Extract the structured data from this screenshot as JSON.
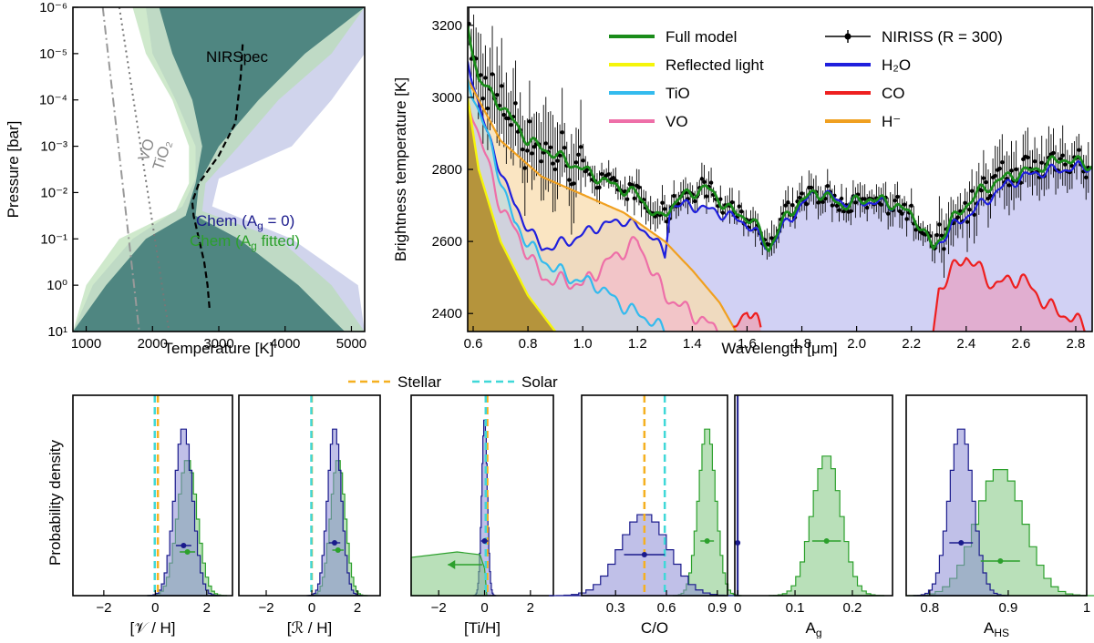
{
  "chart_data": [
    {
      "type": "area",
      "id": "pt_profile",
      "xlabel": "Temperature [K]",
      "ylabel": "Pressure [bar]",
      "xlim": [
        800,
        5200
      ],
      "ylim_log10": [
        -6,
        1
      ],
      "xticks": [
        "1000",
        "2000",
        "3000",
        "4000",
        "5000"
      ],
      "yticks": [
        "10⁻⁶",
        "10⁻⁵",
        "10⁻⁴",
        "10⁻³",
        "10⁻²",
        "10⁻¹",
        "10⁰",
        "10¹"
      ],
      "annotations": {
        "nirspec": "NIRSpec",
        "tio2": "TiO₂",
        "vo": "VO"
      },
      "legend": [
        {
          "name": "Chem (Aᵍ = 0)",
          "label_main": "Chem (A",
          "label_sub": "g",
          "label_end": " = 0)",
          "color": "#1a1a8c"
        },
        {
          "name": "Chem (Aᵍ fitted)",
          "label_main": "Chem (A",
          "label_sub": "g",
          "label_end": " fitted)",
          "color": "#2ca02c"
        }
      ],
      "nirspec_profile": {
        "logP": [
          -5.2,
          -4.5,
          -3.5,
          -2.8,
          -2.2,
          -1.8,
          -1.5,
          -1.0,
          -0.5,
          0.0,
          0.5
        ],
        "T": [
          3360,
          3330,
          3250,
          3000,
          2700,
          2600,
          2620,
          2700,
          2780,
          2830,
          2860
        ]
      },
      "tio2_curve": {
        "logP": [
          -6,
          1
        ],
        "T": [
          1500,
          2250
        ]
      },
      "vo_curve": {
        "logP": [
          -6,
          1
        ],
        "T": [
          1250,
          1800
        ]
      }
    },
    {
      "type": "line",
      "id": "spectrum",
      "xlabel": "Wavelength [μm]",
      "ylabel": "Brightness temperature [K]",
      "xlim": [
        0.58,
        2.86
      ],
      "ylim": [
        2350,
        3250
      ],
      "xticks": [
        0.6,
        0.8,
        1.0,
        1.2,
        1.4,
        1.6,
        1.8,
        2.0,
        2.2,
        2.4,
        2.6,
        2.8
      ],
      "yticks": [
        2400,
        2600,
        2800,
        3000,
        3200
      ],
      "legend_placement": "top",
      "series": [
        {
          "name": "Full model",
          "color": "#1a8c1a"
        },
        {
          "name": "Reflected light",
          "color": "#f5f50a"
        },
        {
          "name": "TiO",
          "color": "#33bbee"
        },
        {
          "name": "VO",
          "color": "#ee6fa8"
        },
        {
          "name": "NIRISS (R = 300)",
          "color": "#000000"
        },
        {
          "name": "H₂O",
          "color": "#1f1fdd"
        },
        {
          "name": "CO",
          "color": "#ee1f1f"
        },
        {
          "name": "H⁻",
          "color": "#f0a020"
        }
      ],
      "h2o_model": {
        "x": [
          0.58,
          0.65,
          0.75,
          0.85,
          0.95,
          1.05,
          1.15,
          1.25,
          1.3,
          1.32,
          1.4,
          1.5,
          1.6,
          1.68,
          1.75,
          1.85,
          1.95,
          2.05,
          2.15,
          2.22,
          2.28,
          2.35,
          2.45,
          2.55,
          2.65,
          2.75,
          2.86
        ],
        "y": [
          3100,
          2900,
          2700,
          2580,
          2600,
          2640,
          2660,
          2620,
          2560,
          2700,
          2700,
          2680,
          2650,
          2580,
          2660,
          2740,
          2710,
          2710,
          2700,
          2660,
          2580,
          2640,
          2700,
          2760,
          2790,
          2800,
          2810
        ]
      },
      "full_model": {
        "x": [
          0.58,
          0.62,
          0.7,
          0.8,
          0.9,
          1.0,
          1.1,
          1.2,
          1.28,
          1.35,
          1.45,
          1.55,
          1.62,
          1.68,
          1.75,
          1.85,
          1.95,
          2.05,
          2.15,
          2.22,
          2.28,
          2.35,
          2.45,
          2.55,
          2.65,
          2.75,
          2.86
        ],
        "y": [
          3200,
          3050,
          2980,
          2880,
          2840,
          2800,
          2760,
          2730,
          2660,
          2720,
          2750,
          2680,
          2660,
          2580,
          2680,
          2740,
          2700,
          2720,
          2700,
          2660,
          2580,
          2660,
          2740,
          2780,
          2800,
          2830,
          2810
        ]
      },
      "hminus_model": {
        "x": [
          0.58,
          0.7,
          0.85,
          1.0,
          1.15,
          1.3,
          1.4,
          1.5,
          1.56
        ],
        "y": [
          3050,
          2880,
          2780,
          2730,
          2680,
          2600,
          2520,
          2430,
          2350
        ]
      },
      "vo_model": {
        "x": [
          0.58,
          0.7,
          0.85,
          1.0,
          1.1,
          1.2,
          1.3,
          1.4,
          1.5
        ],
        "y": [
          3000,
          2700,
          2500,
          2480,
          2550,
          2600,
          2450,
          2400,
          2350
        ]
      },
      "tio_model": {
        "x": [
          0.58,
          0.65,
          0.75,
          0.85,
          0.95,
          1.05,
          1.15,
          1.25,
          1.3
        ],
        "y": [
          3050,
          2900,
          2650,
          2550,
          2500,
          2480,
          2420,
          2380,
          2350
        ]
      },
      "reflected_model": {
        "x": [
          0.58,
          0.62,
          0.7,
          0.8,
          0.9
        ],
        "y": [
          3000,
          2800,
          2600,
          2450,
          2350
        ]
      },
      "co_model": {
        "x": [
          1.55,
          1.6,
          1.65,
          2.28,
          2.3,
          2.35,
          2.4,
          2.45,
          2.5,
          2.6,
          2.7,
          2.8,
          2.86
        ],
        "y": [
          2350,
          2420,
          2350,
          2350,
          2470,
          2520,
          2560,
          2520,
          2480,
          2500,
          2420,
          2380,
          2350
        ]
      }
    },
    {
      "type": "bar",
      "id": "posteriors",
      "ylabel": "Probability density",
      "reference_lines": [
        {
          "name": "Stellar",
          "color": "#f5b020"
        },
        {
          "name": "Solar",
          "color": "#40d8d8"
        }
      ],
      "panels": [
        {
          "xlabel": "[𝒱 / H]",
          "xlim": [
            -3.2,
            3.0
          ],
          "xticks": [
            "−2",
            "0",
            "2"
          ],
          "stellar": 0.1,
          "solar": -0.02,
          "blue": {
            "mean": 1.1,
            "sd": 0.35,
            "err": 0.3
          },
          "green": {
            "mean": 1.25,
            "sd": 0.38,
            "err": 0.3
          }
        },
        {
          "xlabel": "[ℛ / H]",
          "xlim": [
            -3.2,
            3.0
          ],
          "xticks": [
            "−2",
            "0",
            "2"
          ],
          "stellar": 0.0,
          "solar": -0.02,
          "blue": {
            "mean": 1.0,
            "sd": 0.3,
            "err": 0.25
          },
          "green": {
            "mean": 1.15,
            "sd": 0.32,
            "err": 0.25
          }
        },
        {
          "xlabel": "[Ti/H]",
          "xlim": [
            -3.2,
            3.0
          ],
          "xticks": [
            "−2",
            "0",
            "2"
          ],
          "stellar": 0.12,
          "solar": 0.05,
          "blue": {
            "mean": 0.0,
            "sd": 0.12,
            "err": 0.15
          },
          "green": {
            "mean": -3.0,
            "sd": 0.0,
            "err": 0.0
          }
        },
        {
          "xlabel": "C/O",
          "xlim": [
            0.1,
            0.96
          ],
          "xticks": [
            "0.3",
            "0.6",
            "0.9"
          ],
          "stellar": 0.47,
          "solar": 0.59,
          "blue": {
            "mean": 0.47,
            "sd": 0.14,
            "err": 0.12
          },
          "green": {
            "mean": 0.84,
            "sd": 0.05,
            "err": 0.04
          }
        },
        {
          "xlabel": "Aᵍ",
          "xlabel_main": "A",
          "xlabel_sub": "g",
          "xlim": [
            -0.005,
            0.27
          ],
          "xticks": [
            "0",
            "0.1",
            "0.2"
          ],
          "blue": {
            "mean": 0.0,
            "sd": 0.0,
            "err": 0.0
          },
          "green": {
            "mean": 0.155,
            "sd": 0.025,
            "err": 0.025
          }
        },
        {
          "xlabel": "AHS",
          "xlabel_main": "A",
          "xlabel_sub": "HS",
          "xlim": [
            0.77,
            1.0
          ],
          "xticks": [
            "0.8",
            "0.9",
            "1"
          ],
          "blue": {
            "mean": 0.84,
            "sd": 0.015,
            "err": 0.015
          },
          "green": {
            "mean": 0.89,
            "sd": 0.03,
            "err": 0.025
          }
        }
      ]
    }
  ]
}
